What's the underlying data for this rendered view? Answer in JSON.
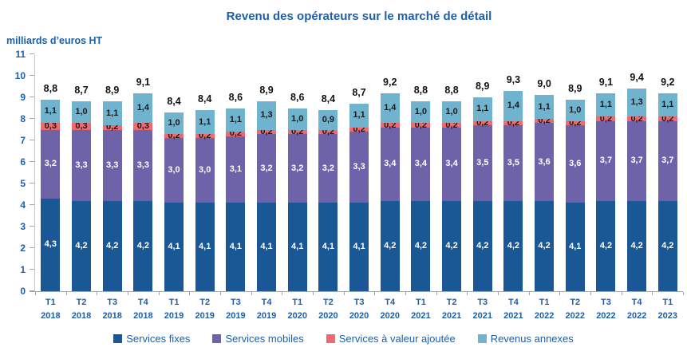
{
  "chart_data": {
    "type": "bar",
    "stacked": true,
    "title": "Revenu des opérateurs sur le marché de détail",
    "ylabel": "milliards d’euros HT",
    "ylim": [
      0,
      11
    ],
    "yticks": [
      0,
      1,
      2,
      3,
      4,
      5,
      6,
      7,
      8,
      9,
      10,
      11
    ],
    "grid": false,
    "legend_position": "bottom",
    "categories": [
      {
        "quarter": "T1",
        "year": "2018"
      },
      {
        "quarter": "T2",
        "year": "2018"
      },
      {
        "quarter": "T3",
        "year": "2018"
      },
      {
        "quarter": "T4",
        "year": "2018"
      },
      {
        "quarter": "T1",
        "year": "2019"
      },
      {
        "quarter": "T2",
        "year": "2019"
      },
      {
        "quarter": "T3",
        "year": "2019"
      },
      {
        "quarter": "T4",
        "year": "2019"
      },
      {
        "quarter": "T1",
        "year": "2020"
      },
      {
        "quarter": "T2",
        "year": "2020"
      },
      {
        "quarter": "T3",
        "year": "2020"
      },
      {
        "quarter": "T4",
        "year": "2020"
      },
      {
        "quarter": "T1",
        "year": "2021"
      },
      {
        "quarter": "T2",
        "year": "2021"
      },
      {
        "quarter": "T3",
        "year": "2021"
      },
      {
        "quarter": "T4",
        "year": "2021"
      },
      {
        "quarter": "T1",
        "year": "2022"
      },
      {
        "quarter": "T2",
        "year": "2022"
      },
      {
        "quarter": "T3",
        "year": "2022"
      },
      {
        "quarter": "T4",
        "year": "2022"
      },
      {
        "quarter": "T1",
        "year": "2023"
      }
    ],
    "series": [
      {
        "name": "Services fixes",
        "key": "services-fixes",
        "color": "#1A5795",
        "label_color": "#FFFFFF",
        "values": [
          4.3,
          4.2,
          4.2,
          4.2,
          4.1,
          4.1,
          4.1,
          4.1,
          4.1,
          4.1,
          4.1,
          4.2,
          4.2,
          4.2,
          4.2,
          4.2,
          4.2,
          4.1,
          4.2,
          4.2,
          4.2
        ]
      },
      {
        "name": "Services mobiles",
        "key": "services-mobiles",
        "color": "#6E63A8",
        "label_color": "#FFFFFF",
        "values": [
          3.2,
          3.3,
          3.3,
          3.3,
          3.0,
          3.0,
          3.1,
          3.2,
          3.2,
          3.2,
          3.3,
          3.4,
          3.4,
          3.4,
          3.5,
          3.5,
          3.6,
          3.6,
          3.7,
          3.7,
          3.7
        ]
      },
      {
        "name": "Services à valeur ajoutée",
        "key": "services-a-valeur-ajoutee",
        "color": "#F0696E",
        "label_color": "#1A1A1A",
        "values": [
          0.3,
          0.3,
          0.2,
          0.3,
          0.2,
          0.2,
          0.2,
          0.2,
          0.2,
          0.2,
          0.2,
          0.2,
          0.2,
          0.2,
          0.2,
          0.2,
          0.2,
          0.2,
          0.2,
          0.2,
          0.2
        ]
      },
      {
        "name": "Revenus annexes",
        "key": "revenus-annexes",
        "color": "#6FB3CF",
        "label_color": "#1A1A1A",
        "values": [
          1.1,
          1.0,
          1.1,
          1.4,
          1.0,
          1.1,
          1.1,
          1.3,
          1.0,
          0.9,
          1.1,
          1.4,
          1.0,
          1.0,
          1.1,
          1.4,
          1.1,
          1.0,
          1.1,
          1.3,
          1.1
        ]
      }
    ],
    "totals": [
      8.8,
      8.7,
      8.9,
      9.1,
      8.4,
      8.4,
      8.6,
      8.9,
      8.6,
      8.4,
      8.7,
      9.2,
      8.8,
      8.8,
      8.9,
      9.3,
      9.0,
      8.9,
      9.1,
      9.4,
      9.2
    ],
    "colors": {
      "axis_text": "#1F5FA8",
      "title_text": "#1F5FA8",
      "legend_text": "#1F5FA8",
      "total_label_text": "#111111",
      "axis_line": "#A6A6A6"
    }
  }
}
